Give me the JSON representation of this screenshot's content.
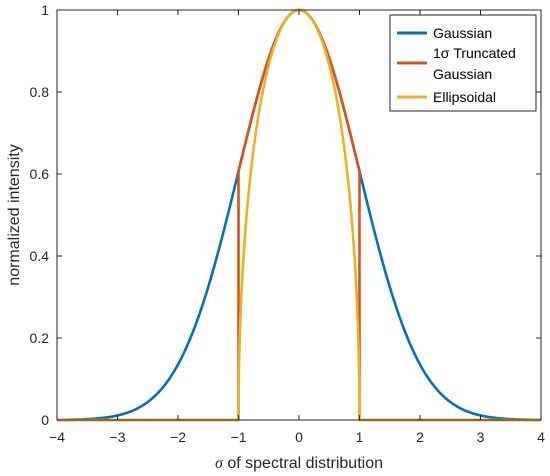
{
  "chart_data": {
    "type": "line",
    "xlabel_symbol": "σ",
    "xlabel_rest": " of spectral distribution",
    "ylabel": "normalized intensity",
    "xlim": [
      -4,
      4
    ],
    "ylim": [
      0,
      1
    ],
    "xticks": [
      -4,
      -3,
      -2,
      -1,
      0,
      1,
      2,
      3,
      4
    ],
    "yticks": [
      0,
      0.2,
      0.4,
      0.6,
      0.8,
      1
    ],
    "xtick_labels": [
      "−4",
      "−3",
      "−2",
      "−1",
      "0",
      "1",
      "2",
      "3",
      "4"
    ],
    "ytick_labels": [
      "0",
      "0.2",
      "0.4",
      "0.6",
      "0.8",
      "1"
    ],
    "grid": false,
    "legend_position": "top-right",
    "series": [
      {
        "name": "Gaussian",
        "color": "#0072BD",
        "points": [
          [
            -4,
            0.0003
          ],
          [
            -3.5,
            0.0022
          ],
          [
            -3,
            0.0111
          ],
          [
            -2.5,
            0.0439
          ],
          [
            -2,
            0.1353
          ],
          [
            -1.5,
            0.3247
          ],
          [
            -1,
            0.6065
          ],
          [
            -0.5,
            0.8825
          ],
          [
            0,
            1
          ],
          [
            0.5,
            0.8825
          ],
          [
            1,
            0.6065
          ],
          [
            1.5,
            0.3247
          ],
          [
            2,
            0.1353
          ],
          [
            2.5,
            0.0439
          ],
          [
            3,
            0.0111
          ],
          [
            3.5,
            0.0022
          ],
          [
            4,
            0.0003
          ]
        ]
      },
      {
        "name_line1": "1σ Truncated",
        "name_line2": "Gaussian",
        "color": "#D95319",
        "points": [
          [
            -4,
            0
          ],
          [
            -1,
            0
          ],
          [
            -1,
            0.6065
          ],
          [
            -0.5,
            0.8825
          ],
          [
            0,
            1
          ],
          [
            0.5,
            0.8825
          ],
          [
            1,
            0.6065
          ],
          [
            1,
            0
          ],
          [
            4,
            0
          ]
        ]
      },
      {
        "name": "Ellipsoidal",
        "color": "#EDB120",
        "points": [
          [
            -4,
            0
          ],
          [
            -1,
            0
          ],
          [
            -0.9,
            0.436
          ],
          [
            -0.75,
            0.661
          ],
          [
            -0.5,
            0.866
          ],
          [
            -0.25,
            0.968
          ],
          [
            0,
            1
          ],
          [
            0.25,
            0.968
          ],
          [
            0.5,
            0.866
          ],
          [
            0.75,
            0.661
          ],
          [
            0.9,
            0.436
          ],
          [
            1,
            0
          ],
          [
            4,
            0
          ]
        ]
      }
    ]
  }
}
